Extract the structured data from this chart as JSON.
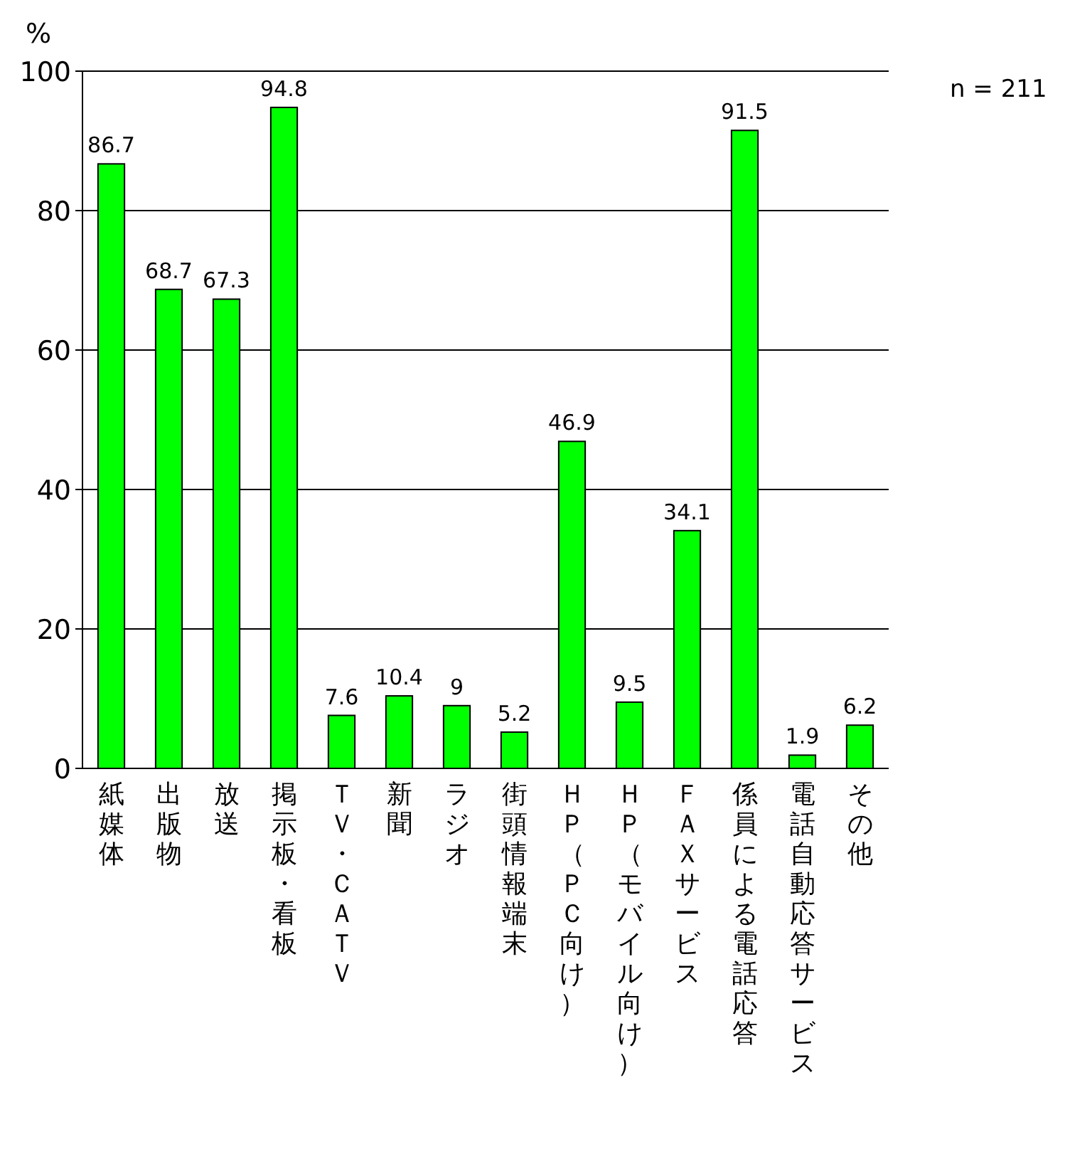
{
  "chart_data": {
    "type": "bar",
    "ylabel": "%",
    "annotations": [
      "n = 211"
    ],
    "categories": [
      "紙媒体",
      "出版物",
      "放送",
      "掲示板・看板",
      "ＴＶ・ＣＡＴＶ",
      "新聞",
      "ラジオ",
      "街頭情報端末",
      "ＨＰ（ＰＣ向け）",
      "ＨＰ（モバイル向け）",
      "ＦＡＸサービス",
      "係員による電話応答",
      "電話自動応答サービス",
      "その他"
    ],
    "values": [
      86.7,
      68.7,
      67.3,
      94.8,
      7.6,
      10.4,
      9,
      5.2,
      46.9,
      9.5,
      34.1,
      91.5,
      1.9,
      6.2
    ],
    "color": "#00ff00",
    "ylim": [
      0,
      100
    ],
    "yticks": [
      0,
      20,
      40,
      60,
      80,
      100
    ],
    "grid": "y",
    "data_labels": true
  }
}
